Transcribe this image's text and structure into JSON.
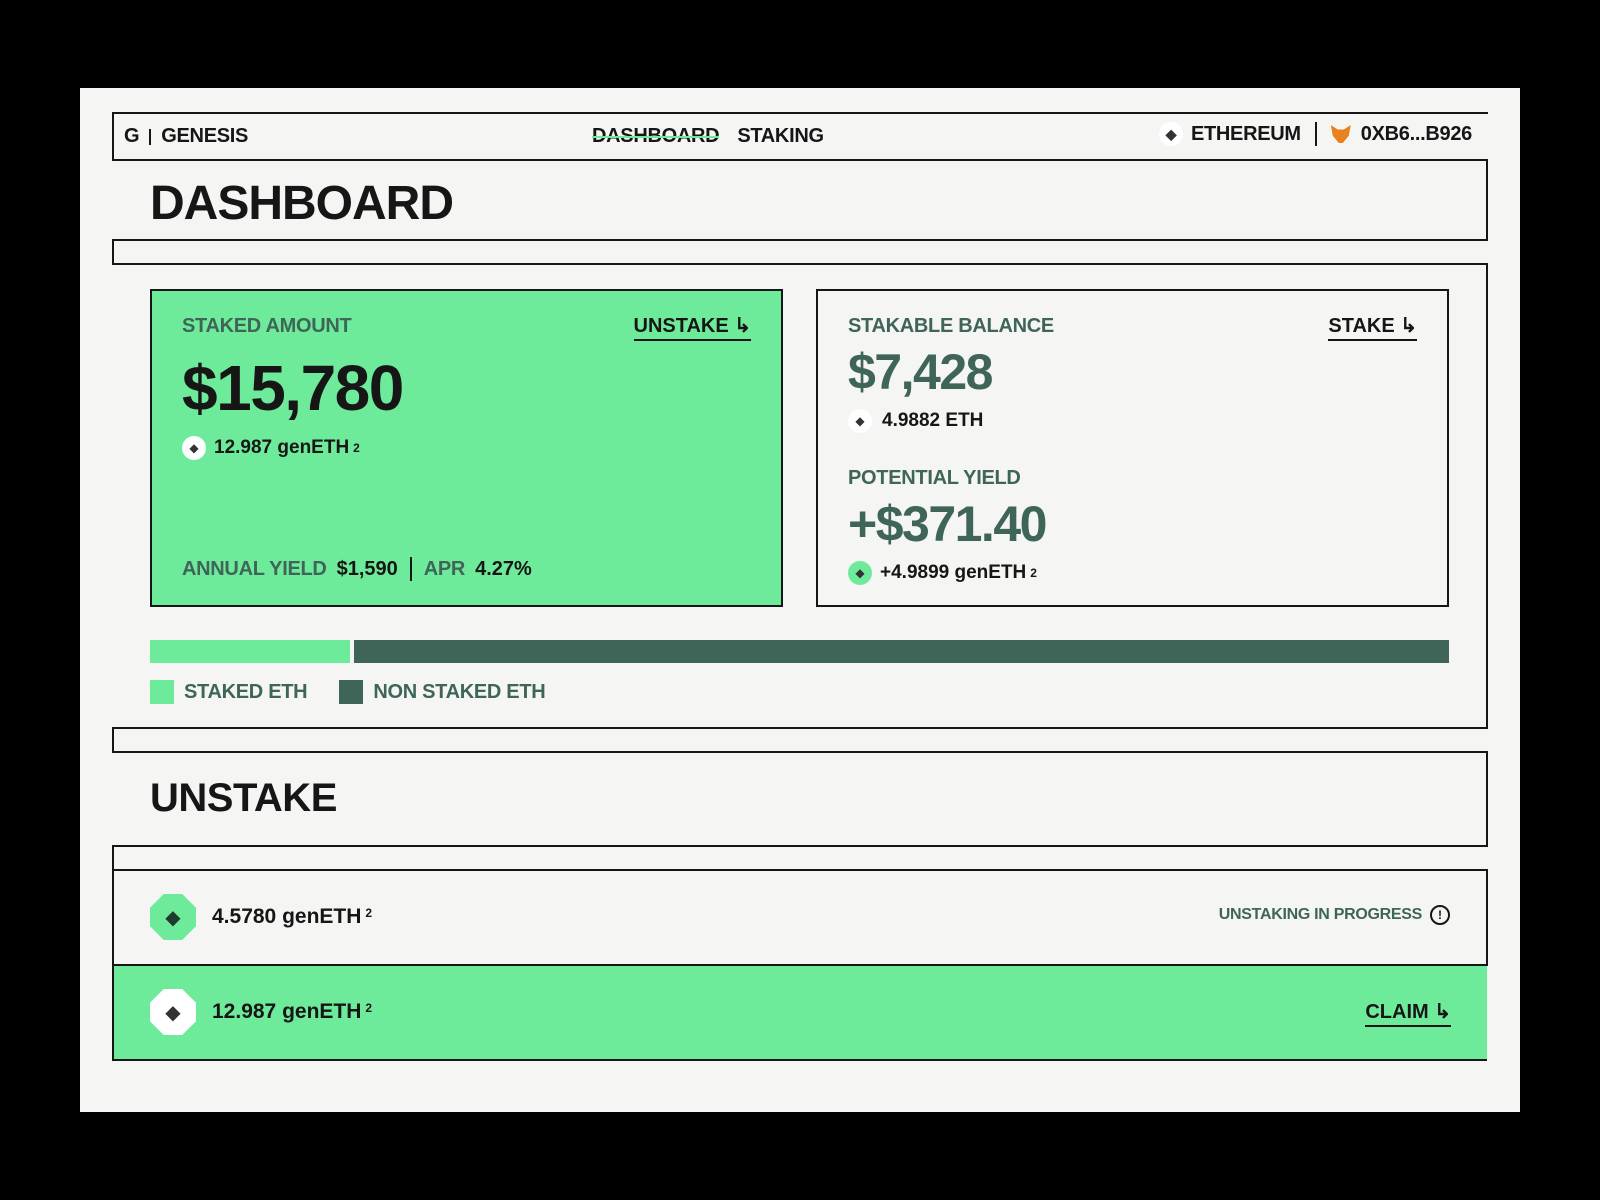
{
  "nav": {
    "logo": "G",
    "brand": "GENESIS",
    "links": [
      {
        "label": "DASHBOARD",
        "active": true
      },
      {
        "label": "STAKING",
        "active": false
      }
    ],
    "network": "ETHEREUM",
    "wallet": "0XB6...B926",
    "network_icon": "ethereum-icon",
    "wallet_icon": "metamask-fox-icon"
  },
  "dashboard": {
    "title": "DASHBOARD"
  },
  "staked": {
    "label": "STAKED AMOUNT",
    "action": "UNSTAKE ↳",
    "amount": "$15,780",
    "token_amount": "12.987 genETH",
    "footnote": "2",
    "annual_yield_label": "ANNUAL YIELD",
    "annual_yield": "$1,590",
    "apr_label": "APR",
    "apr": "4.27%"
  },
  "stakable": {
    "label": "STAKABLE BALANCE",
    "action": "STAKE ↳",
    "amount": "$7,428",
    "eth_amount": "4.9882 ETH",
    "yield_label": "POTENTIAL YIELD",
    "yield_amount": "+$371.40",
    "yield_token": "+4.9899 genETH",
    "footnote": "2"
  },
  "distribution": {
    "staked_fraction": 0.154,
    "legend": [
      {
        "label": "STAKED ETH",
        "color": "#6eeb9a"
      },
      {
        "label": "NON STAKED ETH",
        "color": "#3e6558"
      }
    ]
  },
  "unstake": {
    "title": "UNSTAKE",
    "rows": [
      {
        "amount": "4.5780 genETH",
        "footnote": "2",
        "status": "UNSTAKING IN PROGRESS",
        "status_icon": "alert-circle-icon"
      },
      {
        "amount": "12.987 genETH",
        "footnote": "2",
        "action": "CLAIM ↳"
      }
    ]
  },
  "colors": {
    "accent": "#6eeb9a",
    "dark_green": "#3e6558",
    "background": "#f5f5f3",
    "ink": "#161616"
  }
}
